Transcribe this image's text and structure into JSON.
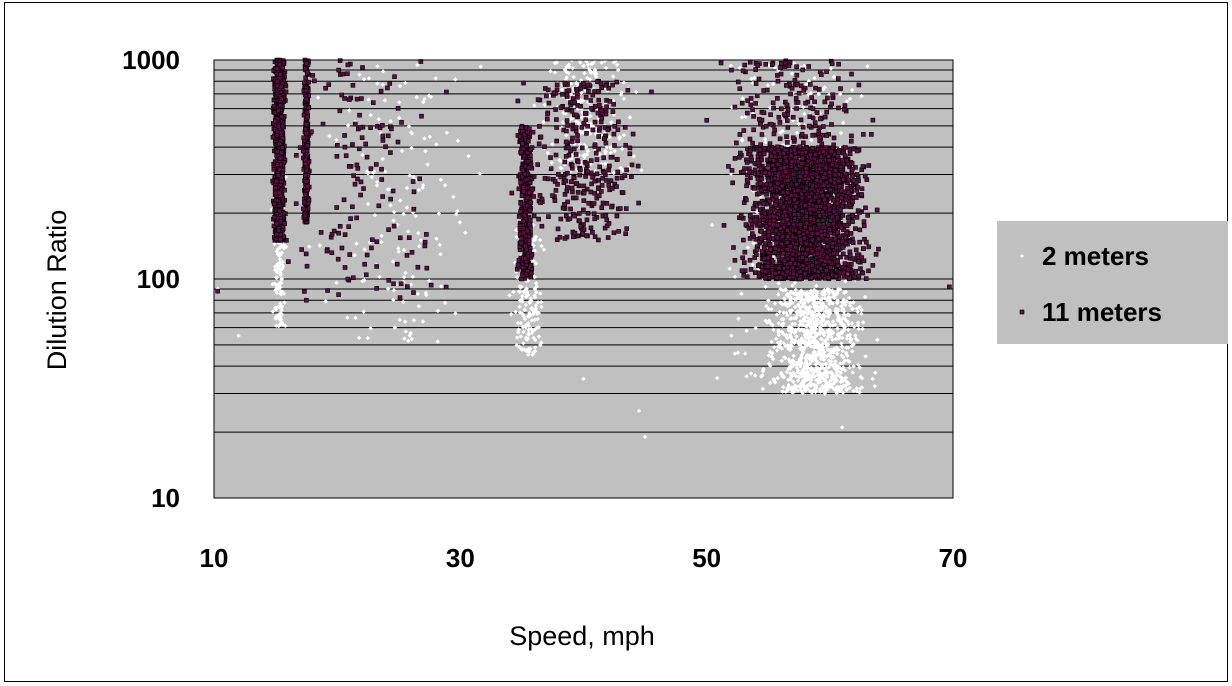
{
  "chart_data": {
    "type": "scatter",
    "title": "",
    "xlabel": "Speed, mph",
    "ylabel": "Dilution Ratio",
    "xlim": [
      10,
      70
    ],
    "ylim": [
      10,
      1000
    ],
    "yscale": "log",
    "x_ticks": [
      "10",
      "30",
      "50",
      "70"
    ],
    "y_ticks": [
      "10",
      "100",
      "1000"
    ],
    "grid": "horizontal",
    "legend_position": "right",
    "plot_background": "#c0c0c0",
    "series": [
      {
        "name": "2 meters",
        "color": "#ffffff",
        "marker": "diamond",
        "clusters": [
          {
            "x_center": 15.3,
            "x_spread": 0.8,
            "y_min": 60,
            "y_max": 300,
            "count": 160
          },
          {
            "x_center": 35.5,
            "x_spread": 1.8,
            "y_min": 45,
            "y_max": 200,
            "count": 200
          },
          {
            "x_center": 40,
            "x_spread": 6,
            "y_min": 300,
            "y_max": 1000,
            "count": 250
          },
          {
            "x_center": 59,
            "x_spread": 5.5,
            "y_min": 30,
            "y_max": 90,
            "count": 900
          },
          {
            "x_center": 57,
            "x_spread": 9,
            "y_min": 30,
            "y_max": 1000,
            "count": 300
          },
          {
            "x_center": 25,
            "x_spread": 10,
            "y_min": 50,
            "y_max": 1000,
            "count": 150
          }
        ],
        "points": [
          [
            45,
            19
          ],
          [
            61,
            21
          ],
          [
            44.5,
            25
          ],
          [
            40,
            35
          ],
          [
            36.5,
            50
          ],
          [
            12,
            55
          ],
          [
            10.3,
            90
          ]
        ]
      },
      {
        "name": "11 meters",
        "color": "#5a1040",
        "marker": "square",
        "clusters": [
          {
            "x_center": 15.3,
            "x_spread": 0.7,
            "y_min": 150,
            "y_max": 1000,
            "count": 900
          },
          {
            "x_center": 17.5,
            "x_spread": 0.35,
            "y_min": 180,
            "y_max": 1000,
            "count": 250
          },
          {
            "x_center": 35.3,
            "x_spread": 0.9,
            "y_min": 100,
            "y_max": 500,
            "count": 350
          },
          {
            "x_center": 40,
            "x_spread": 7,
            "y_min": 150,
            "y_max": 800,
            "count": 350
          },
          {
            "x_center": 58,
            "x_spread": 7.5,
            "y_min": 100,
            "y_max": 400,
            "count": 2400
          },
          {
            "x_center": 57,
            "x_spread": 9,
            "y_min": 300,
            "y_max": 1000,
            "count": 250
          },
          {
            "x_center": 22,
            "x_spread": 10,
            "y_min": 80,
            "y_max": 1000,
            "count": 150
          }
        ],
        "points": [
          [
            10.3,
            88
          ],
          [
            17.5,
            80
          ],
          [
            69.7,
            92
          ]
        ]
      }
    ]
  }
}
